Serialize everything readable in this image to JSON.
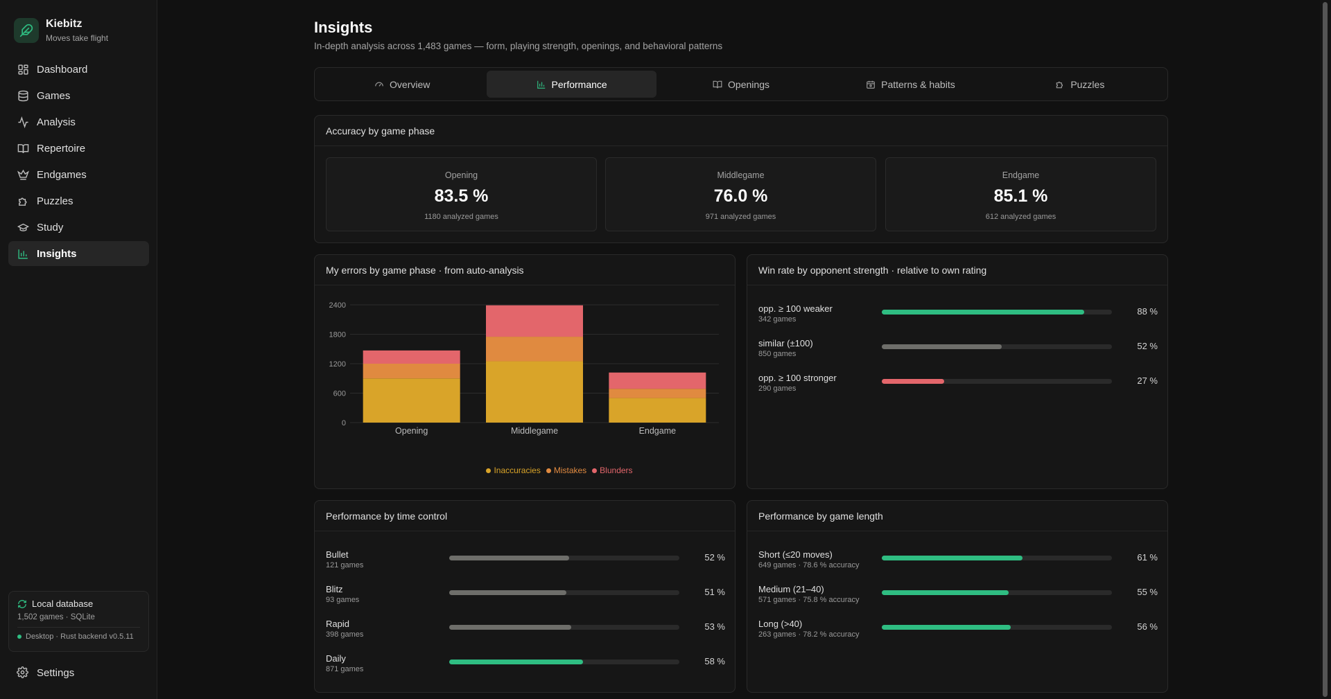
{
  "app": {
    "name": "Kiebitz",
    "tagline": "Moves take flight"
  },
  "nav": [
    {
      "label": "Dashboard",
      "icon": "dashboard-icon"
    },
    {
      "label": "Games",
      "icon": "database-icon"
    },
    {
      "label": "Analysis",
      "icon": "activity-icon"
    },
    {
      "label": "Repertoire",
      "icon": "book-icon"
    },
    {
      "label": "Endgames",
      "icon": "crown-icon"
    },
    {
      "label": "Puzzles",
      "icon": "puzzle-icon"
    },
    {
      "label": "Study",
      "icon": "graduation-cap-icon"
    },
    {
      "label": "Insights",
      "icon": "bar-chart-icon",
      "active": true
    }
  ],
  "database": {
    "title": "Local database",
    "info": "1,502 games · SQLite",
    "footer": "Desktop · Rust backend v0.5.11"
  },
  "settings_label": "Settings",
  "page": {
    "title": "Insights",
    "subtitle": "In-depth analysis across 1,483 games — form, playing strength, openings, and behavioral patterns"
  },
  "tabs": [
    {
      "label": "Overview",
      "icon": "gauge-icon"
    },
    {
      "label": "Performance",
      "icon": "bar-chart-icon",
      "active": true
    },
    {
      "label": "Openings",
      "icon": "book-open-icon"
    },
    {
      "label": "Patterns & habits",
      "icon": "calendar-icon"
    },
    {
      "label": "Puzzles",
      "icon": "puzzle-icon"
    }
  ],
  "accuracy": {
    "title": "Accuracy by game phase",
    "phases": [
      {
        "label": "Opening",
        "value": "83.5 %",
        "sub": "1180 analyzed games"
      },
      {
        "label": "Middlegame",
        "value": "76.0 %",
        "sub": "971 analyzed games"
      },
      {
        "label": "Endgame",
        "value": "85.1 %",
        "sub": "612 analyzed games"
      }
    ]
  },
  "errors_card": {
    "title": "My errors by game phase · from auto-analysis"
  },
  "chart_data": {
    "type": "bar",
    "stacked": true,
    "categories": [
      "Opening",
      "Middlegame",
      "Endgame"
    ],
    "series": [
      {
        "name": "Inaccuracies",
        "color": "#d9a429",
        "values": [
          900,
          1250,
          500
        ]
      },
      {
        "name": "Mistakes",
        "color": "#e08a40",
        "values": [
          300,
          500,
          190
        ]
      },
      {
        "name": "Blunders",
        "color": "#e3666b",
        "values": [
          270,
          640,
          330
        ]
      }
    ],
    "yticks": [
      "0",
      "600",
      "1200",
      "1800",
      "2400"
    ],
    "ylim": [
      0,
      2400
    ],
    "grid": true,
    "legend": "bottom"
  },
  "winrate": {
    "title": "Win rate by opponent strength · relative to own rating",
    "rows": [
      {
        "label": "opp. ≥ 100 weaker",
        "sub": "342 games",
        "value": 88,
        "pct": "88 %",
        "color": "#2fbd82"
      },
      {
        "label": "similar (±100)",
        "sub": "850 games",
        "value": 52,
        "pct": "52 %",
        "color": "#6e6e6a"
      },
      {
        "label": "opp. ≥ 100 stronger",
        "sub": "290 games",
        "value": 27,
        "pct": "27 %",
        "color": "#e3666b"
      }
    ]
  },
  "time_control": {
    "title": "Performance by time control",
    "rows": [
      {
        "label": "Bullet",
        "sub": "121 games",
        "value": 52,
        "pct": "52 %",
        "color": "#6e6e6a"
      },
      {
        "label": "Blitz",
        "sub": "93 games",
        "value": 51,
        "pct": "51 %",
        "color": "#6e6e6a"
      },
      {
        "label": "Rapid",
        "sub": "398 games",
        "value": 53,
        "pct": "53 %",
        "color": "#6e6e6a"
      },
      {
        "label": "Daily",
        "sub": "871 games",
        "value": 58,
        "pct": "58 %",
        "color": "#2fbd82"
      }
    ]
  },
  "game_length": {
    "title": "Performance by game length",
    "rows": [
      {
        "label": "Short (≤20 moves)",
        "sub": "649 games · 78.6 % accuracy",
        "value": 61,
        "pct": "61 %",
        "color": "#2fbd82"
      },
      {
        "label": "Medium (21–40)",
        "sub": "571 games · 75.8 % accuracy",
        "value": 55,
        "pct": "55 %",
        "color": "#2fbd82"
      },
      {
        "label": "Long (>40)",
        "sub": "263 games · 78.2 % accuracy",
        "value": 56,
        "pct": "56 %",
        "color": "#2fbd82"
      }
    ]
  }
}
